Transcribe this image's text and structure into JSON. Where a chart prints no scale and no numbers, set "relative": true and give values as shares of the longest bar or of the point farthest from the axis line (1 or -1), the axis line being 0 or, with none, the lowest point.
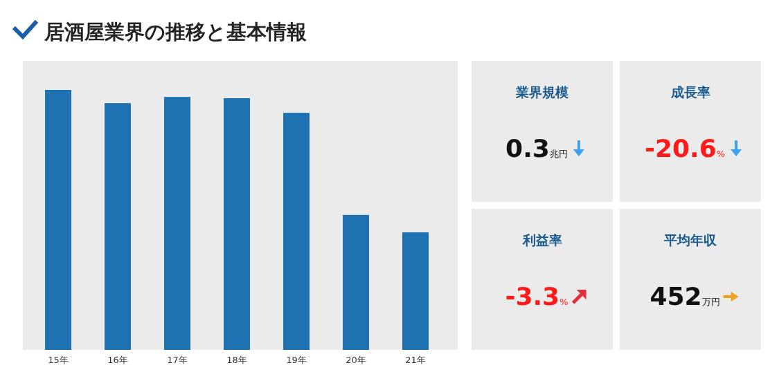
{
  "chart_data": [
    {
      "type": "bar",
      "title": "居酒屋業界の推移と基本情報",
      "relative": true,
      "color": "#1f72b1",
      "categories": [
        "15年",
        "16年",
        "17年",
        "18年",
        "19年",
        "20年",
        "21年"
      ],
      "values": [
        1,
        0.949,
        0.973,
        0.968,
        0.912,
        0.519,
        0.452
      ]
    },
    {
      "type": "other",
      "title": "業界規模",
      "annotations": [
        "0.3",
        "兆円"
      ]
    },
    {
      "type": "other",
      "title": "成長率",
      "annotations": [
        "-20.6",
        "%"
      ]
    },
    {
      "type": "other",
      "title": "利益率",
      "annotations": [
        "-3.3",
        "%"
      ]
    },
    {
      "type": "other",
      "title": "平均年収",
      "annotations": [
        "452",
        "万円"
      ]
    }
  ]
}
